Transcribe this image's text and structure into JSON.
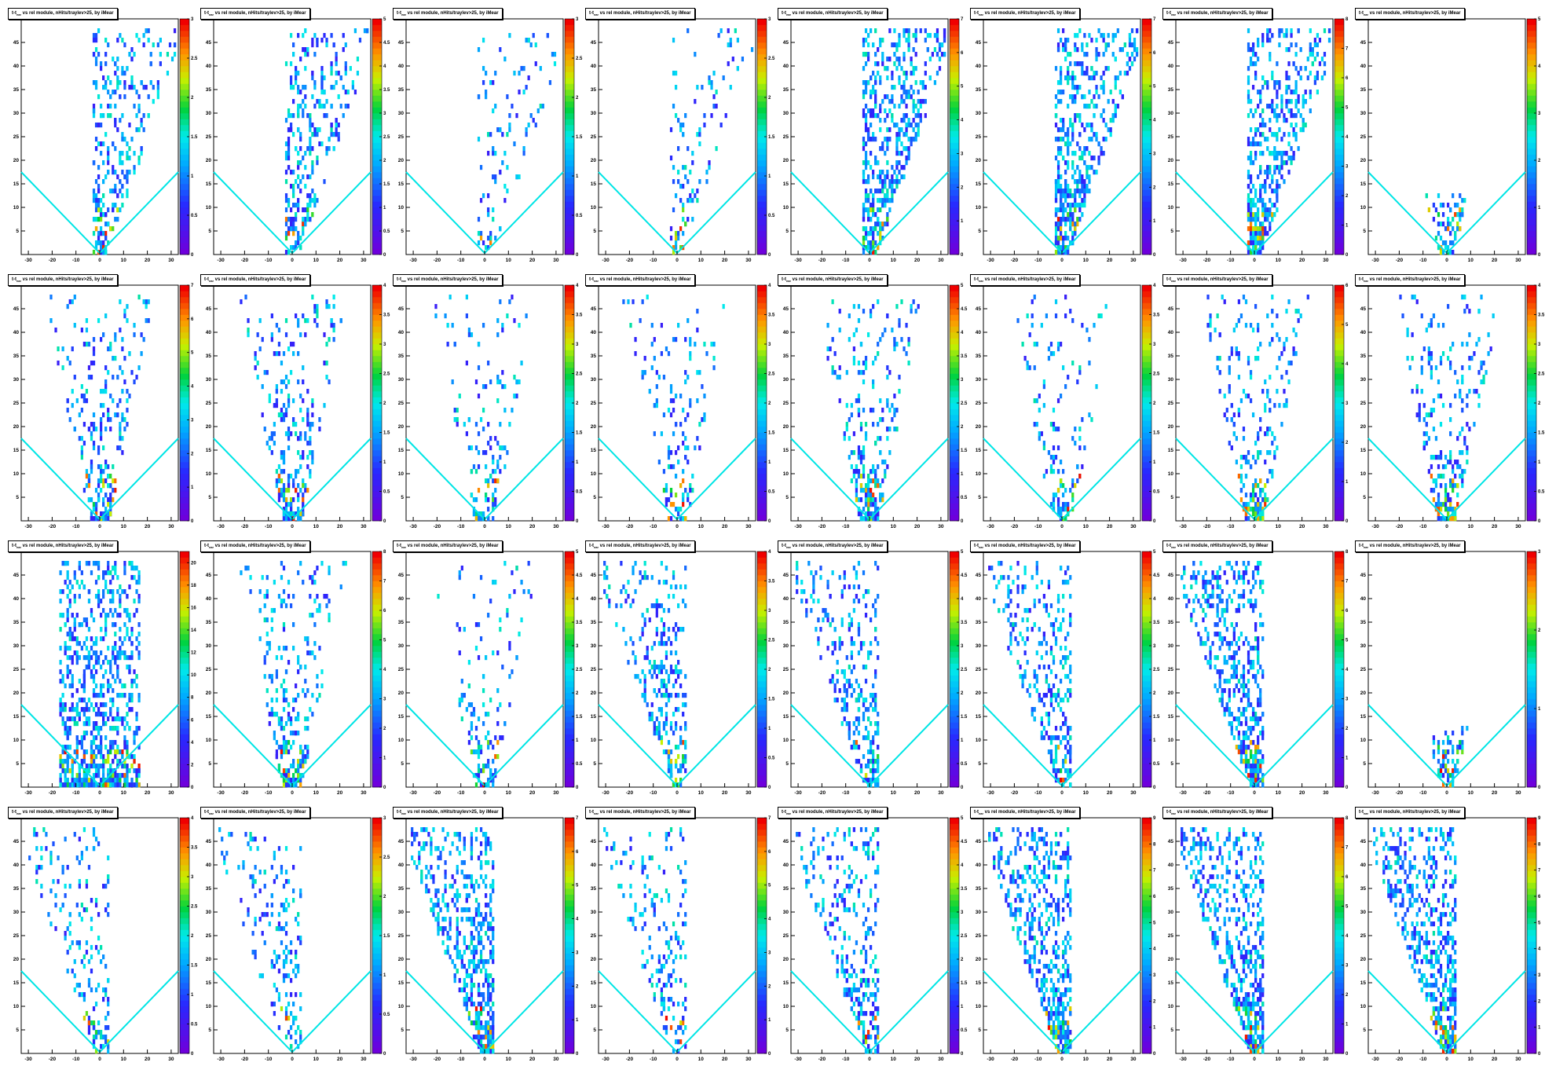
{
  "panel_title": "t-t",
  "panel_title_sub": "ear",
  "panel_title_rest": " vs rel module, nHits/traylev>25, by iMear",
  "colors": {
    "boundary": "#00e5e5",
    "axis": "#000000"
  },
  "chart_data": [
    {
      "type": "heatmap",
      "xlim": [
        -33,
        33
      ],
      "ylim": [
        0,
        50
      ],
      "xticks": [
        -30,
        -20,
        -10,
        0,
        10,
        20,
        30
      ],
      "yticks": [
        5,
        10,
        15,
        20,
        25,
        30,
        35,
        40,
        45
      ],
      "zmax": 3,
      "zticks": [
        0.5,
        1,
        1.5,
        2,
        2.5,
        3
      ],
      "pattern": "right"
    },
    {
      "type": "heatmap",
      "xlim": [
        -33,
        33
      ],
      "ylim": [
        0,
        50
      ],
      "xticks": [
        -30,
        -20,
        -10,
        0,
        10,
        20,
        30
      ],
      "yticks": [
        5,
        10,
        15,
        20,
        25,
        30,
        35,
        40,
        45
      ],
      "zmax": 5,
      "zticks": [
        0.5,
        1,
        1.5,
        2,
        2.5,
        3,
        3.5,
        4,
        4.5,
        5
      ],
      "pattern": "right"
    },
    {
      "type": "heatmap",
      "xlim": [
        -33,
        33
      ],
      "ylim": [
        0,
        50
      ],
      "xticks": [
        -30,
        -20,
        -10,
        0,
        10,
        20,
        30
      ],
      "yticks": [
        5,
        10,
        15,
        20,
        25,
        30,
        35,
        40,
        45
      ],
      "zmax": 3,
      "zticks": [
        0.5,
        1,
        1.5,
        2,
        2.5,
        3
      ],
      "pattern": "right-sparse"
    },
    {
      "type": "heatmap",
      "xlim": [
        -33,
        33
      ],
      "ylim": [
        0,
        50
      ],
      "xticks": [
        -30,
        -20,
        -10,
        0,
        10,
        20,
        30
      ],
      "yticks": [
        5,
        10,
        15,
        20,
        25,
        30,
        35,
        40,
        45
      ],
      "zmax": 3,
      "zticks": [
        0.5,
        1,
        1.5,
        2,
        2.5,
        3
      ],
      "pattern": "right-sparse"
    },
    {
      "type": "heatmap",
      "xlim": [
        -33,
        33
      ],
      "ylim": [
        0,
        50
      ],
      "xticks": [
        -30,
        -20,
        -10,
        0,
        10,
        20,
        30
      ],
      "yticks": [
        5,
        10,
        15,
        20,
        25,
        30,
        35,
        40,
        45
      ],
      "zmax": 7,
      "zticks": [
        1,
        2,
        3,
        4,
        5,
        6,
        7
      ],
      "pattern": "right-dense"
    },
    {
      "type": "heatmap",
      "xlim": [
        -33,
        33
      ],
      "ylim": [
        0,
        50
      ],
      "xticks": [
        -30,
        -20,
        -10,
        0,
        10,
        20,
        30
      ],
      "yticks": [
        5,
        10,
        15,
        20,
        25,
        30,
        35,
        40,
        45
      ],
      "zmax": 7,
      "zticks": [
        1,
        2,
        3,
        4,
        5,
        6,
        7
      ],
      "pattern": "right-dense"
    },
    {
      "type": "heatmap",
      "xlim": [
        -33,
        33
      ],
      "ylim": [
        0,
        50
      ],
      "xticks": [
        -30,
        -20,
        -10,
        0,
        10,
        20,
        30
      ],
      "yticks": [
        5,
        10,
        15,
        20,
        25,
        30,
        35,
        40,
        45
      ],
      "zmax": 8,
      "zticks": [
        1,
        2,
        3,
        4,
        5,
        6,
        7,
        8
      ],
      "pattern": "right-dense"
    },
    {
      "type": "heatmap",
      "xlim": [
        -33,
        33
      ],
      "ylim": [
        0,
        50
      ],
      "xticks": [
        -30,
        -20,
        -10,
        0,
        10,
        20,
        30
      ],
      "yticks": [
        5,
        10,
        15,
        20,
        25,
        30,
        35,
        40,
        45
      ],
      "zmax": 5,
      "zticks": [
        1,
        2,
        3,
        4,
        5
      ],
      "pattern": "center-small"
    },
    {
      "type": "heatmap",
      "xlim": [
        -33,
        33
      ],
      "ylim": [
        0,
        50
      ],
      "xticks": [
        -30,
        -20,
        -10,
        0,
        10,
        20,
        30
      ],
      "yticks": [
        5,
        10,
        15,
        20,
        25,
        30,
        35,
        40,
        45
      ],
      "zmax": 7,
      "zticks": [
        1,
        2,
        3,
        4,
        5,
        6,
        7
      ],
      "pattern": "center"
    },
    {
      "type": "heatmap",
      "xlim": [
        -33,
        33
      ],
      "ylim": [
        0,
        50
      ],
      "xticks": [
        -30,
        -20,
        -10,
        0,
        10,
        20,
        30
      ],
      "yticks": [
        5,
        10,
        15,
        20,
        25,
        30,
        35,
        40,
        45
      ],
      "zmax": 4,
      "zticks": [
        0.5,
        1,
        1.5,
        2,
        2.5,
        3,
        3.5,
        4
      ],
      "pattern": "center"
    },
    {
      "type": "heatmap",
      "xlim": [
        -33,
        33
      ],
      "ylim": [
        0,
        50
      ],
      "xticks": [
        -30,
        -20,
        -10,
        0,
        10,
        20,
        30
      ],
      "yticks": [
        5,
        10,
        15,
        20,
        25,
        30,
        35,
        40,
        45
      ],
      "zmax": 4,
      "zticks": [
        0.5,
        1,
        1.5,
        2,
        2.5,
        3,
        3.5,
        4
      ],
      "pattern": "center-sparse"
    },
    {
      "type": "heatmap",
      "xlim": [
        -33,
        33
      ],
      "ylim": [
        0,
        50
      ],
      "xticks": [
        -30,
        -20,
        -10,
        0,
        10,
        20,
        30
      ],
      "yticks": [
        5,
        10,
        15,
        20,
        25,
        30,
        35,
        40,
        45
      ],
      "zmax": 4,
      "zticks": [
        0.5,
        1,
        1.5,
        2,
        2.5,
        3,
        3.5,
        4
      ],
      "pattern": "center-sparse"
    },
    {
      "type": "heatmap",
      "xlim": [
        -33,
        33
      ],
      "ylim": [
        0,
        50
      ],
      "xticks": [
        -30,
        -20,
        -10,
        0,
        10,
        20,
        30
      ],
      "yticks": [
        5,
        10,
        15,
        20,
        25,
        30,
        35,
        40,
        45
      ],
      "zmax": 5,
      "zticks": [
        0.5,
        1,
        1.5,
        2,
        2.5,
        3,
        3.5,
        4,
        4.5,
        5
      ],
      "pattern": "center"
    },
    {
      "type": "heatmap",
      "xlim": [
        -33,
        33
      ],
      "ylim": [
        0,
        50
      ],
      "xticks": [
        -30,
        -20,
        -10,
        0,
        10,
        20,
        30
      ],
      "yticks": [
        5,
        10,
        15,
        20,
        25,
        30,
        35,
        40,
        45
      ],
      "zmax": 4,
      "zticks": [
        0.5,
        1,
        1.5,
        2,
        2.5,
        3,
        3.5,
        4
      ],
      "pattern": "center-sparse"
    },
    {
      "type": "heatmap",
      "xlim": [
        -33,
        33
      ],
      "ylim": [
        0,
        50
      ],
      "xticks": [
        -30,
        -20,
        -10,
        0,
        10,
        20,
        30
      ],
      "yticks": [
        5,
        10,
        15,
        20,
        25,
        30,
        35,
        40,
        45
      ],
      "zmax": 6,
      "zticks": [
        1,
        2,
        3,
        4,
        5,
        6
      ],
      "pattern": "center"
    },
    {
      "type": "heatmap",
      "xlim": [
        -33,
        33
      ],
      "ylim": [
        0,
        50
      ],
      "xticks": [
        -30,
        -20,
        -10,
        0,
        10,
        20,
        30
      ],
      "yticks": [
        5,
        10,
        15,
        20,
        25,
        30,
        35,
        40,
        45
      ],
      "zmax": 4,
      "zticks": [
        0.5,
        1,
        1.5,
        2,
        2.5,
        3,
        3.5,
        4
      ],
      "pattern": "center"
    },
    {
      "type": "heatmap",
      "xlim": [
        -33,
        33
      ],
      "ylim": [
        0,
        50
      ],
      "xticks": [
        -30,
        -20,
        -10,
        0,
        10,
        20,
        30
      ],
      "yticks": [
        5,
        10,
        15,
        20,
        25,
        30,
        35,
        40,
        45
      ],
      "zmax": 21,
      "zticks": [
        2,
        4,
        6,
        8,
        10,
        12,
        14,
        16,
        18,
        20
      ],
      "pattern": "band"
    },
    {
      "type": "heatmap",
      "xlim": [
        -33,
        33
      ],
      "ylim": [
        0,
        50
      ],
      "xticks": [
        -30,
        -20,
        -10,
        0,
        10,
        20,
        30
      ],
      "yticks": [
        5,
        10,
        15,
        20,
        25,
        30,
        35,
        40,
        45
      ],
      "zmax": 8,
      "zticks": [
        1,
        2,
        3,
        4,
        5,
        6,
        7,
        8
      ],
      "pattern": "center"
    },
    {
      "type": "heatmap",
      "xlim": [
        -33,
        33
      ],
      "ylim": [
        0,
        50
      ],
      "xticks": [
        -30,
        -20,
        -10,
        0,
        10,
        20,
        30
      ],
      "yticks": [
        5,
        10,
        15,
        20,
        25,
        30,
        35,
        40,
        45
      ],
      "zmax": 5,
      "zticks": [
        0.5,
        1,
        1.5,
        2,
        2.5,
        3,
        3.5,
        4,
        4.5,
        5
      ],
      "pattern": "center-sparse"
    },
    {
      "type": "heatmap",
      "xlim": [
        -33,
        33
      ],
      "ylim": [
        0,
        50
      ],
      "xticks": [
        -30,
        -20,
        -10,
        0,
        10,
        20,
        30
      ],
      "yticks": [
        5,
        10,
        15,
        20,
        25,
        30,
        35,
        40,
        45
      ],
      "zmax": 4,
      "zticks": [
        0.5,
        1,
        1.5,
        2,
        2.5,
        3,
        3.5,
        4
      ],
      "pattern": "left"
    },
    {
      "type": "heatmap",
      "xlim": [
        -33,
        33
      ],
      "ylim": [
        0,
        50
      ],
      "xticks": [
        -30,
        -20,
        -10,
        0,
        10,
        20,
        30
      ],
      "yticks": [
        5,
        10,
        15,
        20,
        25,
        30,
        35,
        40,
        45
      ],
      "zmax": 5,
      "zticks": [
        0.5,
        1,
        1.5,
        2,
        2.5,
        3,
        3.5,
        4,
        4.5,
        5
      ],
      "pattern": "left"
    },
    {
      "type": "heatmap",
      "xlim": [
        -33,
        33
      ],
      "ylim": [
        0,
        50
      ],
      "xticks": [
        -30,
        -20,
        -10,
        0,
        10,
        20,
        30
      ],
      "yticks": [
        5,
        10,
        15,
        20,
        25,
        30,
        35,
        40,
        45
      ],
      "zmax": 5,
      "zticks": [
        0.5,
        1,
        1.5,
        2,
        2.5,
        3,
        3.5,
        4,
        4.5,
        5
      ],
      "pattern": "left"
    },
    {
      "type": "heatmap",
      "xlim": [
        -33,
        33
      ],
      "ylim": [
        0,
        50
      ],
      "xticks": [
        -30,
        -20,
        -10,
        0,
        10,
        20,
        30
      ],
      "yticks": [
        5,
        10,
        15,
        20,
        25,
        30,
        35,
        40,
        45
      ],
      "zmax": 8,
      "zticks": [
        1,
        2,
        3,
        4,
        5,
        6,
        7,
        8
      ],
      "pattern": "left-dense"
    },
    {
      "type": "heatmap",
      "xlim": [
        -33,
        33
      ],
      "ylim": [
        0,
        50
      ],
      "xticks": [
        -30,
        -20,
        -10,
        0,
        10,
        20,
        30
      ],
      "yticks": [
        5,
        10,
        15,
        20,
        25,
        30,
        35,
        40,
        45
      ],
      "zmax": 3,
      "zticks": [
        1,
        2,
        3
      ],
      "pattern": "center-small"
    },
    {
      "type": "heatmap",
      "xlim": [
        -33,
        33
      ],
      "ylim": [
        0,
        50
      ],
      "xticks": [
        -30,
        -20,
        -10,
        0,
        10,
        20,
        30
      ],
      "yticks": [
        5,
        10,
        15,
        20,
        25,
        30,
        35,
        40,
        45
      ],
      "zmax": 4,
      "zticks": [
        0.5,
        1,
        1.5,
        2,
        2.5,
        3,
        3.5,
        4
      ],
      "pattern": "left-sparse"
    },
    {
      "type": "heatmap",
      "xlim": [
        -33,
        33
      ],
      "ylim": [
        0,
        50
      ],
      "xticks": [
        -30,
        -20,
        -10,
        0,
        10,
        20,
        30
      ],
      "yticks": [
        5,
        10,
        15,
        20,
        25,
        30,
        35,
        40,
        45
      ],
      "zmax": 3,
      "zticks": [
        0.5,
        1,
        1.5,
        2,
        2.5,
        3
      ],
      "pattern": "left-sparse"
    },
    {
      "type": "heatmap",
      "xlim": [
        -33,
        33
      ],
      "ylim": [
        0,
        50
      ],
      "xticks": [
        -30,
        -20,
        -10,
        0,
        10,
        20,
        30
      ],
      "yticks": [
        5,
        10,
        15,
        20,
        25,
        30,
        35,
        40,
        45
      ],
      "zmax": 7,
      "zticks": [
        1,
        2,
        3,
        4,
        5,
        6,
        7
      ],
      "pattern": "left-dense"
    },
    {
      "type": "heatmap",
      "xlim": [
        -33,
        33
      ],
      "ylim": [
        0,
        50
      ],
      "xticks": [
        -30,
        -20,
        -10,
        0,
        10,
        20,
        30
      ],
      "yticks": [
        5,
        10,
        15,
        20,
        25,
        30,
        35,
        40,
        45
      ],
      "zmax": 7,
      "zticks": [
        1,
        2,
        3,
        4,
        5,
        6,
        7
      ],
      "pattern": "left-sparse"
    },
    {
      "type": "heatmap",
      "xlim": [
        -33,
        33
      ],
      "ylim": [
        0,
        50
      ],
      "xticks": [
        -30,
        -20,
        -10,
        0,
        10,
        20,
        30
      ],
      "yticks": [
        5,
        10,
        15,
        20,
        25,
        30,
        35,
        40,
        45
      ],
      "zmax": 5,
      "zticks": [
        0.5,
        1,
        1.5,
        2,
        2.5,
        3,
        3.5,
        4,
        4.5,
        5
      ],
      "pattern": "left"
    },
    {
      "type": "heatmap",
      "xlim": [
        -33,
        33
      ],
      "ylim": [
        0,
        50
      ],
      "xticks": [
        -30,
        -20,
        -10,
        0,
        10,
        20,
        30
      ],
      "yticks": [
        5,
        10,
        15,
        20,
        25,
        30,
        35,
        40,
        45
      ],
      "zmax": 9,
      "zticks": [
        1,
        2,
        3,
        4,
        5,
        6,
        7,
        8,
        9
      ],
      "pattern": "left-dense"
    },
    {
      "type": "heatmap",
      "xlim": [
        -33,
        33
      ],
      "ylim": [
        0,
        50
      ],
      "xticks": [
        -30,
        -20,
        -10,
        0,
        10,
        20,
        30
      ],
      "yticks": [
        5,
        10,
        15,
        20,
        25,
        30,
        35,
        40,
        45
      ],
      "zmax": 8,
      "zticks": [
        1,
        2,
        3,
        4,
        5,
        6,
        7,
        8
      ],
      "pattern": "left-dense"
    },
    {
      "type": "heatmap",
      "xlim": [
        -33,
        33
      ],
      "ylim": [
        0,
        50
      ],
      "xticks": [
        -30,
        -20,
        -10,
        0,
        10,
        20,
        30
      ],
      "yticks": [
        5,
        10,
        15,
        20,
        25,
        30,
        35,
        40,
        45
      ],
      "zmax": 9,
      "zticks": [
        1,
        2,
        3,
        4,
        5,
        6,
        7,
        8,
        9
      ],
      "pattern": "left-dense"
    }
  ]
}
